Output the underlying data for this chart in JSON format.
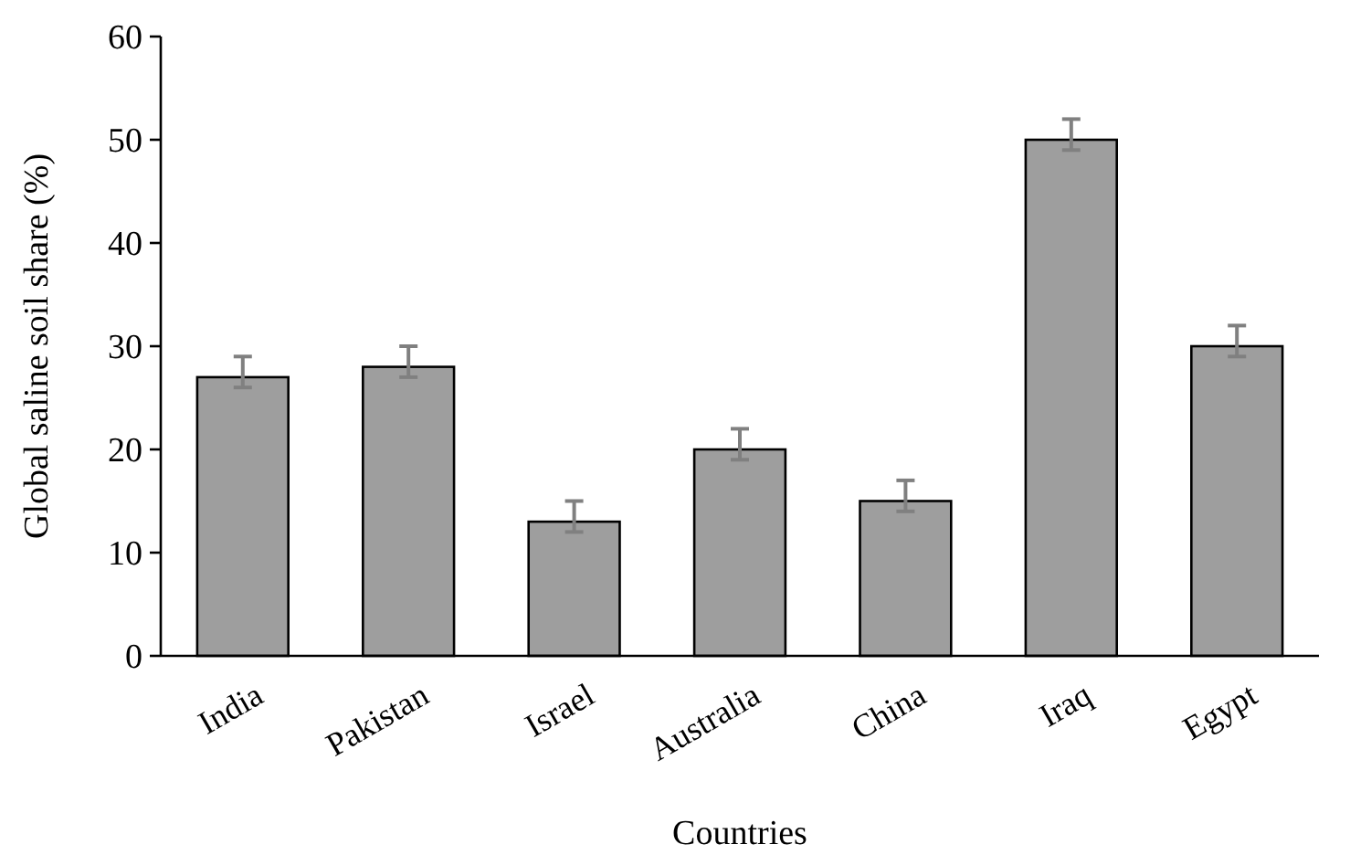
{
  "chart_data": {
    "type": "bar",
    "xlabel": "Countries",
    "ylabel": "Global saline soil share (%)",
    "categories": [
      "India",
      "Pakistan",
      "Israel",
      "Australia",
      "China",
      "Iraq",
      "Egypt"
    ],
    "values": [
      27,
      28,
      13,
      20,
      15,
      50,
      30
    ],
    "errors": [
      [
        26,
        29
      ],
      [
        27,
        30
      ],
      [
        12,
        15
      ],
      [
        19,
        22
      ],
      [
        14,
        17
      ],
      [
        49,
        52
      ],
      [
        29,
        32
      ]
    ],
    "color": "#9e9e9e",
    "ylim": [
      0,
      60
    ],
    "yticks": [
      0,
      10,
      20,
      30,
      40,
      50,
      60
    ],
    "grid": false
  }
}
